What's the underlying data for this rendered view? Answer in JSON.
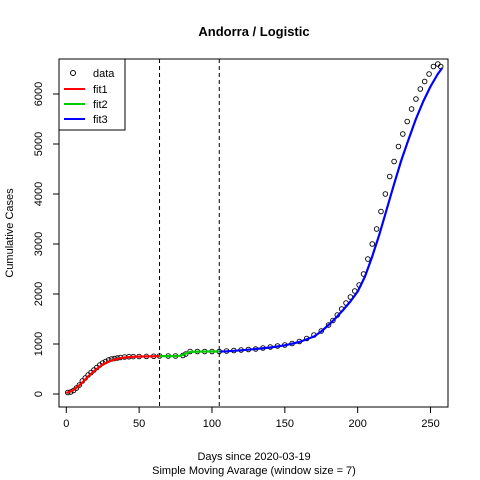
{
  "chart_data": {
    "type": "line",
    "title": "Andorra / Logistic",
    "xlabel": "Days since 2020-03-19",
    "xlabel2": "Simple Moving Avarage (window size = 7)",
    "ylabel": "Cumulative Cases",
    "xlim": [
      -5,
      262
    ],
    "ylim": [
      -260,
      6700
    ],
    "xticks": [
      0,
      50,
      100,
      150,
      200,
      250
    ],
    "yticks": [
      0,
      1000,
      2000,
      3000,
      4000,
      5000,
      6000
    ],
    "vlines": [
      64,
      105
    ],
    "legend": {
      "position": "top-left",
      "entries": [
        {
          "label": "data",
          "kind": "point",
          "color": "#000000"
        },
        {
          "label": "fit1",
          "kind": "line",
          "color": "#ff0000"
        },
        {
          "label": "fit2",
          "kind": "line",
          "color": "#00cd00"
        },
        {
          "label": "fit3",
          "kind": "line",
          "color": "#0000ff"
        }
      ]
    },
    "data_points": {
      "x": [
        1,
        3,
        5,
        7,
        9,
        11,
        13,
        15,
        17,
        19,
        21,
        23,
        25,
        27,
        29,
        31,
        33,
        35,
        37,
        40,
        43,
        46,
        50,
        55,
        60,
        64,
        70,
        75,
        80,
        82,
        85,
        90,
        95,
        100,
        105,
        110,
        115,
        120,
        125,
        130,
        135,
        140,
        145,
        150,
        155,
        160,
        165,
        170,
        175,
        180,
        183,
        186,
        189,
        192,
        195,
        198,
        201,
        204,
        207,
        210,
        213,
        216,
        219,
        222,
        225,
        228,
        231,
        234,
        237,
        240,
        243,
        246,
        249,
        252,
        255,
        257
      ],
      "y": [
        30,
        40,
        70,
        120,
        180,
        260,
        320,
        380,
        430,
        480,
        530,
        580,
        620,
        650,
        680,
        700,
        710,
        720,
        730,
        740,
        745,
        748,
        750,
        752,
        755,
        760,
        760,
        760,
        770,
        800,
        850,
        850,
        850,
        850,
        850,
        860,
        870,
        880,
        890,
        900,
        920,
        940,
        960,
        980,
        1010,
        1050,
        1110,
        1180,
        1260,
        1380,
        1470,
        1580,
        1700,
        1820,
        1940,
        2060,
        2180,
        2400,
        2700,
        3000,
        3300,
        3650,
        4000,
        4350,
        4650,
        4950,
        5200,
        5450,
        5700,
        5900,
        6100,
        6250,
        6400,
        6550,
        6600,
        6550
      ]
    },
    "series": [
      {
        "name": "fit1",
        "x": [
          0,
          5,
          10,
          15,
          20,
          25,
          30,
          35,
          40,
          45,
          50,
          55,
          60,
          64
        ],
        "y": [
          20,
          80,
          200,
          350,
          480,
          590,
          660,
          705,
          730,
          742,
          748,
          752,
          755,
          757
        ]
      },
      {
        "name": "fit2",
        "x": [
          64,
          70,
          75,
          78,
          80,
          82,
          85,
          90,
          95,
          100,
          105
        ],
        "y": [
          757,
          758,
          760,
          765,
          780,
          810,
          840,
          848,
          850,
          850,
          850
        ]
      },
      {
        "name": "fit3",
        "x": [
          105,
          110,
          120,
          130,
          140,
          150,
          160,
          170,
          175,
          180,
          185,
          190,
          195,
          200,
          205,
          210,
          215,
          220,
          225,
          230,
          235,
          240,
          245,
          250,
          255,
          258
        ],
        "y": [
          850,
          855,
          875,
          900,
          930,
          975,
          1040,
          1150,
          1250,
          1380,
          1520,
          1680,
          1850,
          2050,
          2350,
          2750,
          3200,
          3700,
          4200,
          4680,
          5100,
          5500,
          5850,
          6150,
          6400,
          6520
        ]
      }
    ]
  }
}
